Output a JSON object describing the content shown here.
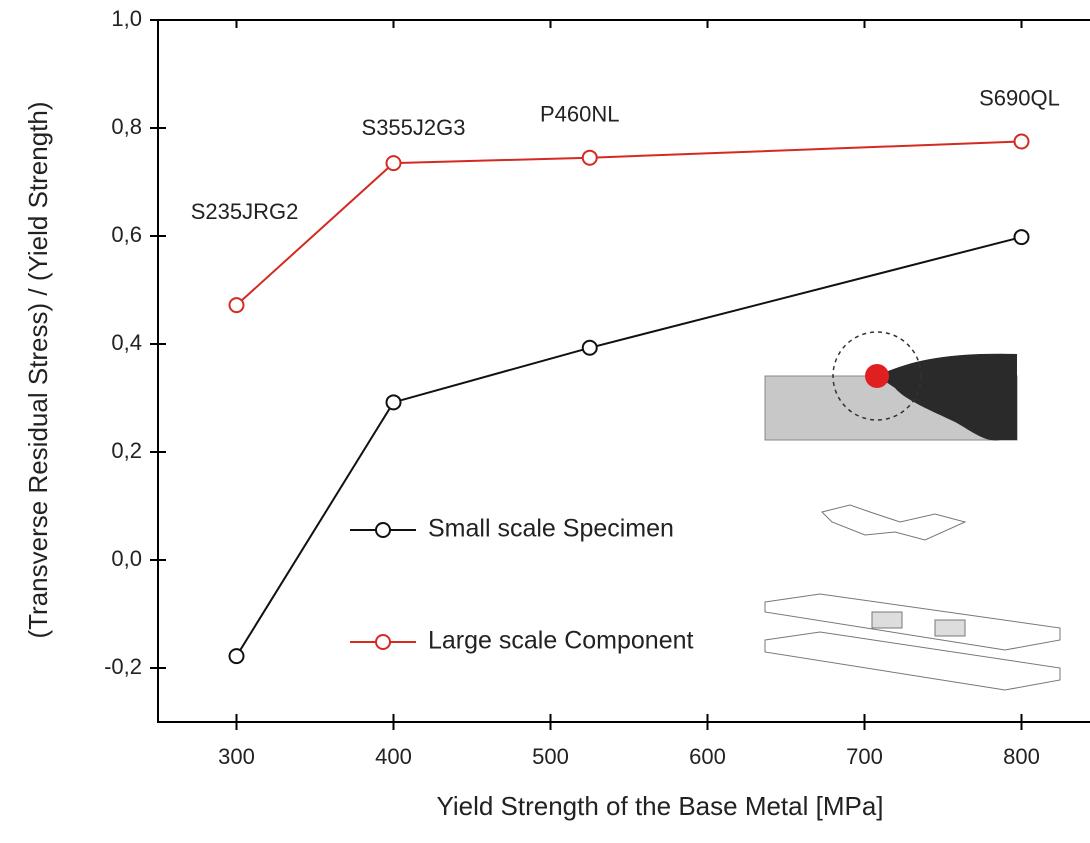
{
  "chart_data": {
    "type": "line",
    "x_label": "Yield Strength of the Base Metal [MPa]",
    "y_label": "(Transverse Residual Stress) / (Yield Strength)",
    "x": [
      300,
      400,
      525,
      800
    ],
    "series": [
      {
        "name": "Small scale Specimen",
        "color": "#111111",
        "values": [
          -0.178,
          0.292,
          0.393,
          0.598
        ]
      },
      {
        "name": "Large scale Component",
        "color": "#d42a22",
        "values": [
          0.472,
          0.735,
          0.745,
          0.775
        ]
      }
    ],
    "point_labels": [
      "S235JRG2",
      "S355J2G3",
      "P460NL",
      "S690QL"
    ],
    "xlim": [
      250,
      850
    ],
    "xticks": [
      300,
      400,
      500,
      600,
      700,
      800
    ],
    "ylim": [
      -0.3,
      1.0
    ],
    "yticks": [
      {
        "value": -0.2,
        "label": "-0,2"
      },
      {
        "value": 0,
        "label": "0,0"
      },
      {
        "value": 0.2,
        "label": "0,2"
      },
      {
        "value": 0.4,
        "label": "0,4"
      },
      {
        "value": 0.6,
        "label": "0,6"
      },
      {
        "value": 0.8,
        "label": "0,8"
      },
      {
        "value": 1.0,
        "label": "1,0"
      }
    ]
  }
}
